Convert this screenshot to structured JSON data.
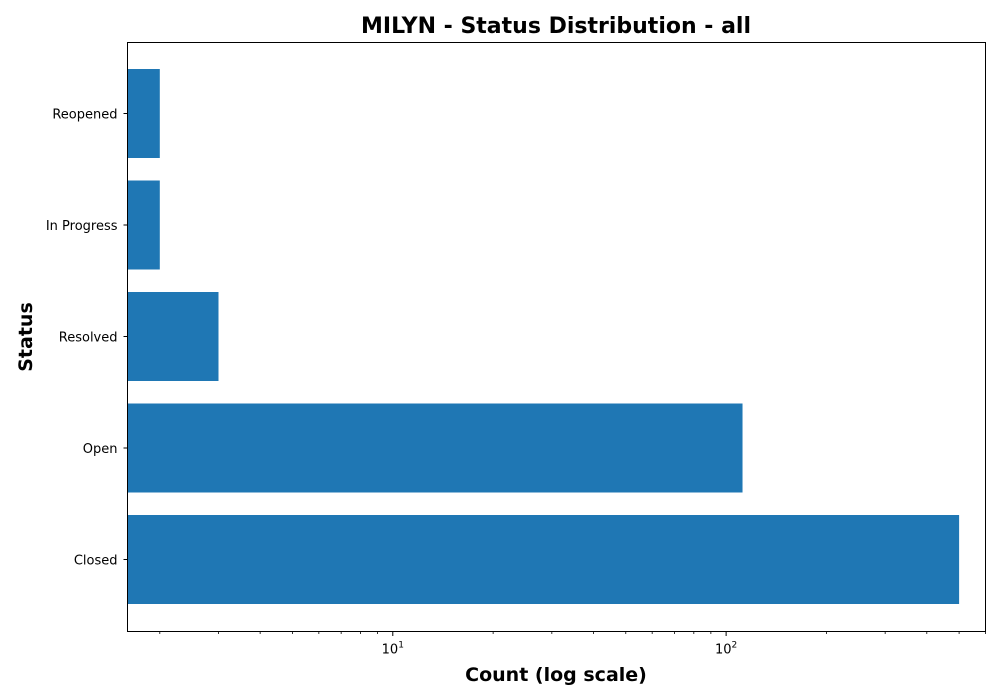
{
  "chart_data": {
    "type": "bar",
    "orientation": "horizontal",
    "title": "MILYN - Status Distribution - all",
    "xlabel": "Count (log scale)",
    "ylabel": "Status",
    "xscale": "log",
    "xlim": [
      1.6,
      600
    ],
    "categories": [
      "Closed",
      "Open",
      "Resolved",
      "In Progress",
      "Reopened"
    ],
    "values": [
      500,
      112,
      3,
      2,
      2
    ],
    "xticks": [
      {
        "value": 10,
        "base": "10",
        "exp": "1"
      },
      {
        "value": 100,
        "base": "10",
        "exp": "2"
      }
    ],
    "color": "#1f77b4",
    "grid": false,
    "legend": "none"
  }
}
